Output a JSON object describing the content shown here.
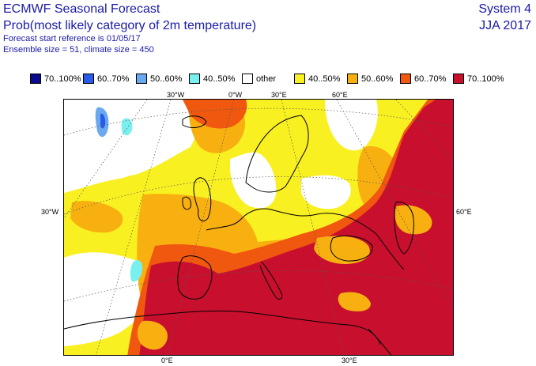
{
  "header": {
    "title": "ECMWF Seasonal Forecast",
    "subtitle": "Prob(most likely category of 2m temperature)",
    "start_ref": "Forecast start reference is 01/05/17",
    "ensemble": "Ensemble size = 51, climate size = 450",
    "system": "System 4",
    "season": "JJA 2017"
  },
  "legend": [
    {
      "label": "70..100%",
      "color": "#0a0a8c"
    },
    {
      "label": "60..70%",
      "color": "#2a5ae8"
    },
    {
      "label": "50..60%",
      "color": "#6aa8f0"
    },
    {
      "label": "40..50%",
      "color": "#78f0f0"
    },
    {
      "label": "other",
      "color": "#ffffff"
    },
    {
      "label": "40..50%",
      "color": "#f8f020"
    },
    {
      "label": "50..60%",
      "color": "#f8b010"
    },
    {
      "label": "60..70%",
      "color": "#f05810"
    },
    {
      "label": "70..100%",
      "color": "#c8102e"
    }
  ],
  "axes": {
    "top": [
      "30°W",
      "0°W",
      "30°E",
      "60°E"
    ],
    "left": [
      "30°W"
    ],
    "right": [
      "60°E"
    ],
    "bottom": [
      "0°E",
      "30°E"
    ]
  },
  "colors": {
    "red": "#c8102e",
    "orange_red": "#f05810",
    "orange": "#f8b010",
    "yellow": "#f8f020",
    "cyan": "#78f0f0",
    "light_blue": "#6aa8f0",
    "blue": "#2a5ae8"
  }
}
